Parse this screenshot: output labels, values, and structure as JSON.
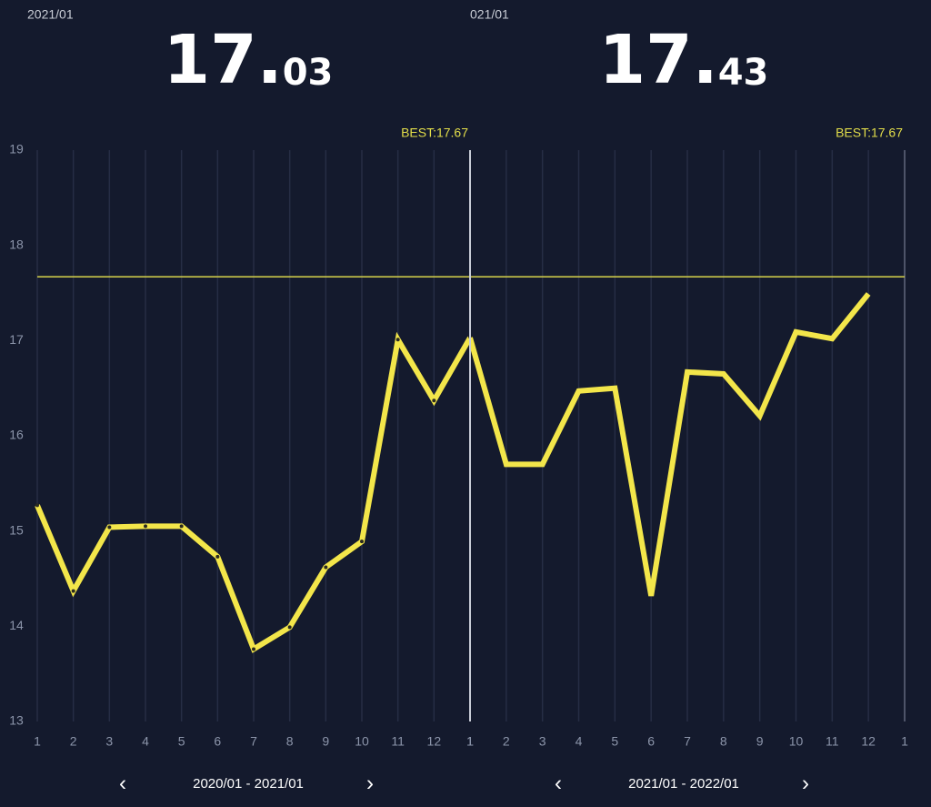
{
  "panels": [
    {
      "date_label": "2021/01",
      "big_integer": "17.",
      "big_fraction": "03",
      "best_label": "BEST:17.67",
      "prev": "‹",
      "range_label": "2020/01 - 2021/01",
      "next": "›"
    },
    {
      "date_label": "021/01",
      "big_integer": "17.",
      "big_fraction": "43",
      "best_label": "BEST:17.67",
      "prev": "‹",
      "range_label": "2021/01 - 2022/01",
      "next": "›"
    }
  ],
  "chart_data": [
    {
      "type": "line",
      "categories": [
        "1",
        "2",
        "3",
        "4",
        "5",
        "6",
        "7",
        "8",
        "9",
        "10",
        "11",
        "12",
        "1"
      ],
      "series": [
        {
          "color": "#f3e64a",
          "markers": true,
          "values": [
            15.27,
            14.37,
            15.04,
            15.05,
            15.05,
            14.73,
            13.76,
            13.99,
            14.62,
            14.89,
            17.01,
            16.37,
            17.03
          ]
        }
      ],
      "ylim": [
        13,
        19
      ],
      "yticks": [
        13,
        14,
        15,
        16,
        17,
        18,
        19
      ],
      "reference_line": 17.67,
      "reference_color": "#d8d44a"
    },
    {
      "type": "line",
      "categories": [
        "1",
        "2",
        "3",
        "4",
        "5",
        "6",
        "7",
        "8",
        "9",
        "10",
        "11",
        "12",
        "1"
      ],
      "series": [
        {
          "color": "#f3e64a",
          "markers": false,
          "values": [
            17.03,
            15.7,
            15.7,
            16.47,
            16.5,
            14.32,
            16.67,
            16.65,
            16.21,
            17.09,
            17.02,
            17.49,
            null
          ]
        }
      ],
      "ylim": [
        13,
        19
      ],
      "reference_line": 17.67,
      "reference_color": "#d8d44a"
    }
  ]
}
